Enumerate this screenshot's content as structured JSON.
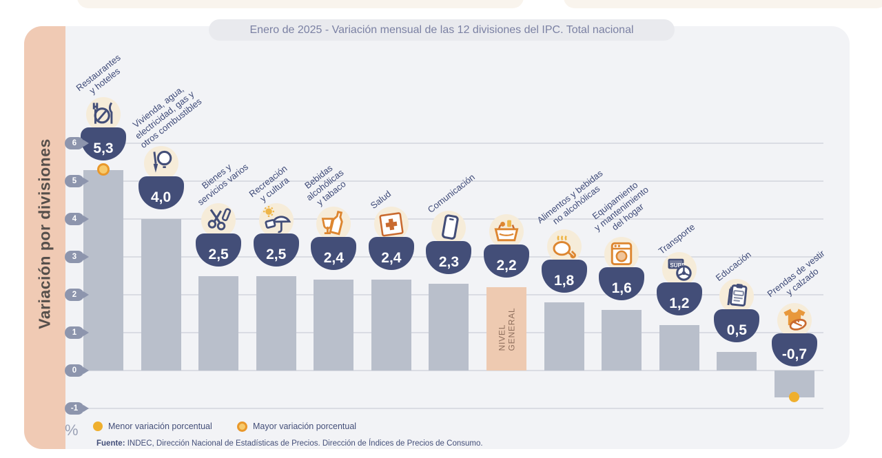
{
  "header": {
    "title": "Enero de 2025 - Variación mensual de las 12 divisiones del IPC. Total nacional"
  },
  "y_axis": {
    "label": "Variación por divisiones",
    "unit": "%",
    "tick_labels": [
      "6",
      "5",
      "4",
      "3",
      "2",
      "1",
      "0",
      "-1"
    ]
  },
  "legend": {
    "menor": "Menor variación porcentual",
    "mayor": "Mayor variación porcentual"
  },
  "source": {
    "label": "Fuente:",
    "text": "INDEC, Dirección Nacional de Estadísticas de Precios. Dirección de Índices de Precios de Consumo."
  },
  "chart_data": {
    "type": "bar",
    "title": "Enero de 2025 - Variación mensual de las 12 divisiones del IPC. Total nacional",
    "ylabel": "Variación por divisiones",
    "unit": "%",
    "ylim": [
      -1,
      6
    ],
    "yticks": [
      6,
      5,
      4,
      3,
      2,
      1,
      0,
      -1
    ],
    "grid": true,
    "divisions": [
      {
        "name": "Restaurantes y hoteles",
        "label_lines": [
          "Restaurantes",
          "y hoteles"
        ],
        "value": 5.3,
        "value_label": "5,3",
        "icon": "restaurant-icon",
        "marker": "mayor"
      },
      {
        "name": "Vivienda, agua, electricidad, gas y otros combustibles",
        "label_lines": [
          "Vivienda, agua,",
          "electricidad, gas y",
          "otros combustibles"
        ],
        "value": 4.0,
        "value_label": "4,0",
        "icon": "housing-icon"
      },
      {
        "name": "Bienes y servicios varios",
        "label_lines": [
          "Bienes y",
          "servicios varios"
        ],
        "value": 2.5,
        "value_label": "2,5",
        "icon": "goods-icon"
      },
      {
        "name": "Recreación y cultura",
        "label_lines": [
          "Recreación",
          "y cultura"
        ],
        "value": 2.5,
        "value_label": "2,5",
        "icon": "recreation-icon"
      },
      {
        "name": "Bebidas alcohólicas y tabaco",
        "label_lines": [
          "Bebidas",
          "alcohólicas",
          "y tabaco"
        ],
        "value": 2.4,
        "value_label": "2,4",
        "icon": "beverages-icon"
      },
      {
        "name": "Salud",
        "label_lines": [
          "Salud"
        ],
        "value": 2.4,
        "value_label": "2,4",
        "icon": "health-icon"
      },
      {
        "name": "Comunicación",
        "label_lines": [
          "Comunicación"
        ],
        "value": 2.3,
        "value_label": "2,3",
        "icon": "communication-icon"
      },
      {
        "name": "Nivel general",
        "label_lines": [],
        "bar_label": "NIVEL\nGENERAL",
        "value": 2.2,
        "value_label": "2,2",
        "icon": "basket-icon",
        "highlight": true
      },
      {
        "name": "Alimentos y bebidas no alcohólicas",
        "label_lines": [
          "Alimentos y bebidas",
          "no alcohólicas"
        ],
        "value": 1.8,
        "value_label": "1,8",
        "icon": "food-icon"
      },
      {
        "name": "Equipamiento y mantenimiento del hogar",
        "label_lines": [
          "Equipamiento",
          "y mantenimiento",
          "del hogar"
        ],
        "value": 1.6,
        "value_label": "1,6",
        "icon": "equipment-icon"
      },
      {
        "name": "Transporte",
        "label_lines": [
          "Transporte"
        ],
        "value": 1.2,
        "value_label": "1,2",
        "icon": "transport-icon"
      },
      {
        "name": "Educación",
        "label_lines": [
          "Educación"
        ],
        "value": 0.5,
        "value_label": "0,5",
        "icon": "education-icon"
      },
      {
        "name": "Prendas de vestir y calzado",
        "label_lines": [
          "Prendas de vestir",
          "y calzado"
        ],
        "value": -0.7,
        "value_label": "-0,7",
        "icon": "clothing-icon",
        "marker": "menor"
      }
    ],
    "colors": {
      "bar": "#b9bfcb",
      "highlight_bar": "#eecab1",
      "badge": "#434e78",
      "accent_orange": "#dd8630",
      "marker_yellow": "#efaf2e",
      "panel": "#f2f3f6",
      "band_pink": "#f0cab4"
    }
  }
}
